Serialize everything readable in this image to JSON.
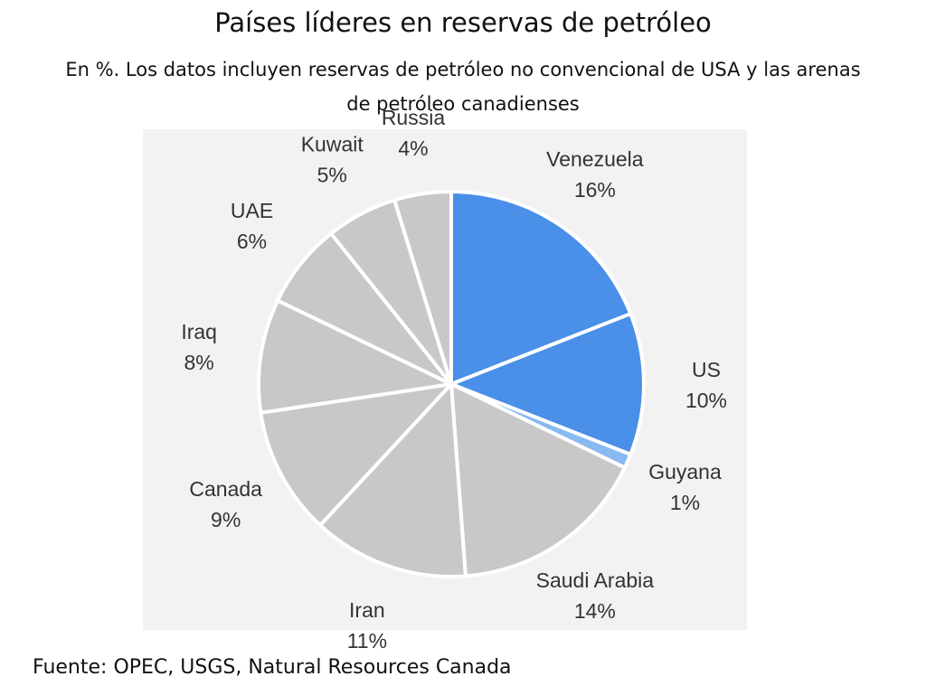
{
  "chart_data": {
    "type": "pie",
    "title": "Países líderes en reservas de petróleo",
    "subtitle": "En %. Los datos incluyen reservas de petróleo no convencional de USA y las arenas de petróleo canadienses",
    "source": "Fuente: OPEC, USGS, Natural Resources Canada",
    "categories": [
      "Venezuela",
      "US",
      "Guyana",
      "Saudi Arabia",
      "Iran",
      "Canada",
      "Iraq",
      "UAE",
      "Kuwait",
      "Russia"
    ],
    "values": [
      16,
      10,
      1,
      14,
      11,
      9,
      8,
      6,
      5,
      4
    ],
    "value_labels": [
      "16%",
      "10%",
      "1%",
      "14%",
      "11%",
      "9%",
      "8%",
      "6%",
      "5%",
      "4%"
    ],
    "colors": [
      "#4a8fe8",
      "#4a8fe8",
      "#8ab8f0",
      "#c8c8c8",
      "#c8c8c8",
      "#c8c8c8",
      "#c8c8c8",
      "#c8c8c8",
      "#c8c8c8",
      "#c8c8c8"
    ]
  }
}
